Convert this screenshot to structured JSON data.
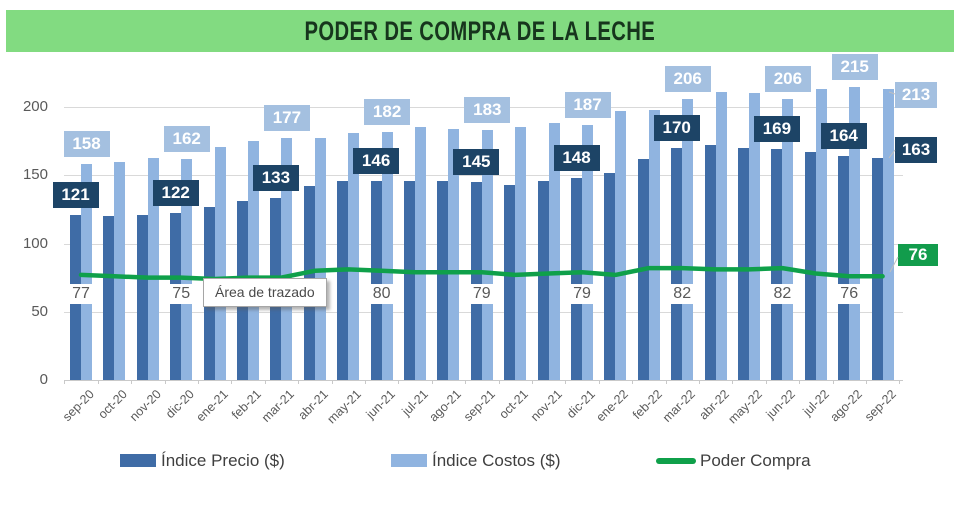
{
  "title": "PODER DE COMPRA DE LA LECHE",
  "tooltip_text": "Área de trazado",
  "colors": {
    "title_band": "#82db81",
    "precio": "#3f6ca6",
    "precio_label_box": "#1d4466",
    "costos": "#90b4e0",
    "costos_label_box": "#a4c0e0",
    "poder_line": "#0fa04a",
    "poder_label_box": "#129c4c",
    "gridline": "#d9d9d9",
    "axis_text": "#595959"
  },
  "legend": {
    "items": [
      {
        "label": "Índice Precio ($)",
        "swatch": "bar"
      },
      {
        "label": "Índice Costos ($)",
        "swatch": "bar"
      },
      {
        "label": "Poder Compra",
        "swatch": "line"
      }
    ]
  },
  "y_axis": {
    "ticks": [
      "0",
      "50",
      "100",
      "150",
      "200"
    ],
    "values": [
      0,
      50,
      100,
      150,
      200
    ]
  },
  "right_labels": {
    "costos": "213",
    "precio": "163",
    "poder": "76"
  },
  "chart_data": {
    "type": "bar",
    "title": "PODER DE COMPRA DE LA LECHE",
    "xlabel": "",
    "ylabel": "",
    "ylim": [
      0,
      220
    ],
    "grid": true,
    "legend_position": "bottom",
    "categories": [
      "sep-20",
      "oct-20",
      "nov-20",
      "dic-20",
      "ene-21",
      "feb-21",
      "mar-21",
      "abr-21",
      "may-21",
      "jun-21",
      "jul-21",
      "ago-21",
      "sep-21",
      "oct-21",
      "nov-21",
      "dic-21",
      "ene-22",
      "feb-22",
      "mar-22",
      "abr-22",
      "may-22",
      "jun-22",
      "jul-22",
      "ago-22",
      "sep-22"
    ],
    "series": [
      {
        "name": "Índice Precio ($)",
        "type": "bar",
        "color": "#3f6ca6",
        "values": [
          121,
          120,
          121,
          122,
          127,
          131,
          133,
          142,
          146,
          146,
          146,
          146,
          145,
          143,
          146,
          148,
          152,
          162,
          170,
          172,
          170,
          169,
          167,
          164,
          163
        ]
      },
      {
        "name": "Índice Costos ($)",
        "type": "bar",
        "color": "#90b4e0",
        "values": [
          158,
          160,
          163,
          162,
          171,
          175,
          177,
          177,
          181,
          182,
          185,
          184,
          183,
          185,
          188,
          187,
          197,
          198,
          206,
          211,
          210,
          206,
          213,
          215,
          213
        ]
      },
      {
        "name": "Poder Compra",
        "type": "line",
        "color": "#0fa04a",
        "values": [
          77,
          76,
          75,
          75,
          74,
          75,
          75,
          80,
          81,
          80,
          79,
          79,
          79,
          77,
          78,
          79,
          77,
          82,
          82,
          81,
          81,
          82,
          78,
          76,
          76
        ]
      }
    ],
    "bar_label_indices": [
      0,
      3,
      6,
      9,
      12,
      15,
      18,
      21,
      23
    ],
    "line_label_indices": [
      0,
      3,
      9,
      12,
      15,
      18,
      21,
      23
    ],
    "labeled_values_note": "index 24 (sep-22) labeled at right edge: costos 213, precio 163, poder 76"
  }
}
